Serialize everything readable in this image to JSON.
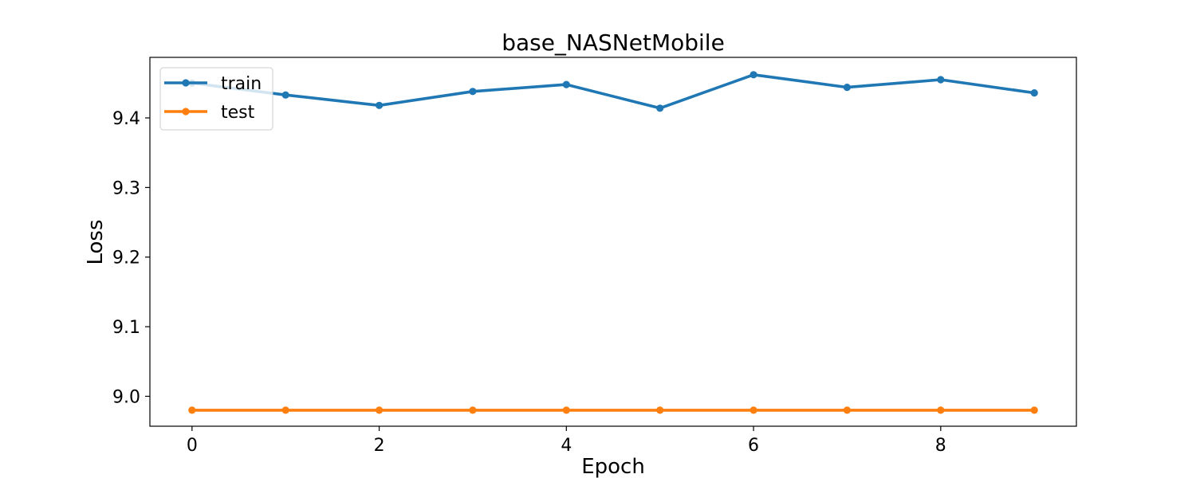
{
  "chart_data": {
    "type": "line",
    "title": "base_NASNetMobile",
    "xlabel": "Epoch",
    "ylabel": "Loss",
    "xlim": [
      -0.45,
      9.45
    ],
    "ylim": [
      8.957,
      9.487
    ],
    "x": [
      0,
      1,
      2,
      3,
      4,
      5,
      6,
      7,
      8,
      9
    ],
    "xticks": [
      0,
      2,
      4,
      6,
      8
    ],
    "yticks": [
      9.0,
      9.1,
      9.2,
      9.3,
      9.4
    ],
    "ytick_labels": [
      "9.0",
      "9.1",
      "9.2",
      "9.3",
      "9.4"
    ],
    "grid": false,
    "legend_position": "top-left",
    "series": [
      {
        "name": "train",
        "color": "#1f77b4",
        "values": [
          9.45,
          9.433,
          9.418,
          9.438,
          9.448,
          9.414,
          9.462,
          9.444,
          9.455,
          9.436
        ]
      },
      {
        "name": "test",
        "color": "#ff7f0e",
        "values": [
          8.98,
          8.98,
          8.98,
          8.98,
          8.98,
          8.98,
          8.98,
          8.98,
          8.98,
          8.98
        ]
      }
    ]
  }
}
